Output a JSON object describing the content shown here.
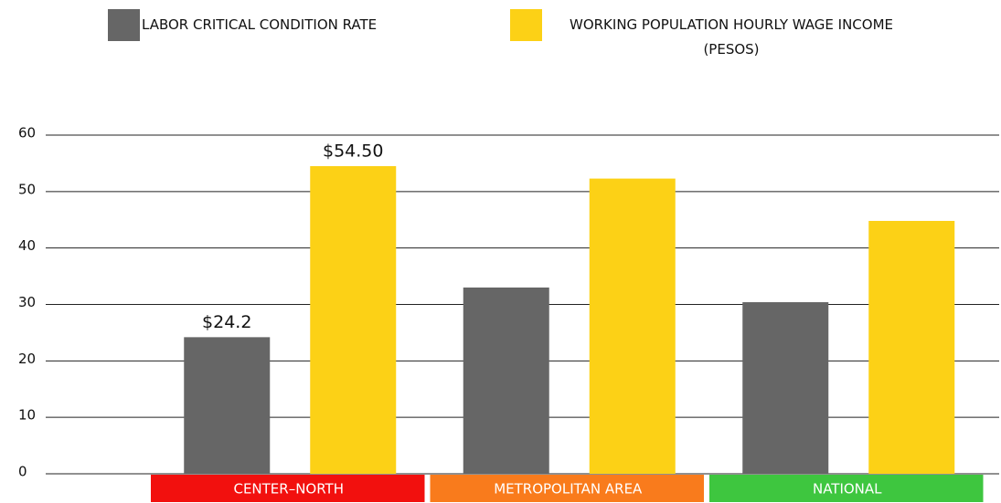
{
  "chart_data": {
    "type": "bar",
    "categories": [
      "CENTER–NORTH",
      "METROPOLITAN AREA",
      "NATIONAL"
    ],
    "category_colors": [
      "#f2100e",
      "#f97b1c",
      "#3ec63f"
    ],
    "series": [
      {
        "name": "LABOR CRITICAL CONDITION RATE",
        "color": "#666666",
        "values": [
          24.2,
          33.0,
          30.4
        ],
        "value_labels": [
          "$24.2",
          null,
          null
        ]
      },
      {
        "name": "WORKING POPULATION HOURLY WAGE INCOME (PESOS)",
        "color": "#fcd116",
        "values": [
          54.5,
          52.3,
          44.8
        ],
        "value_labels": [
          "$54.50",
          null,
          null
        ]
      }
    ],
    "ylim": [
      0,
      60
    ],
    "yticks": [
      0,
      10,
      20,
      30,
      40,
      50,
      60
    ],
    "grid": true
  }
}
